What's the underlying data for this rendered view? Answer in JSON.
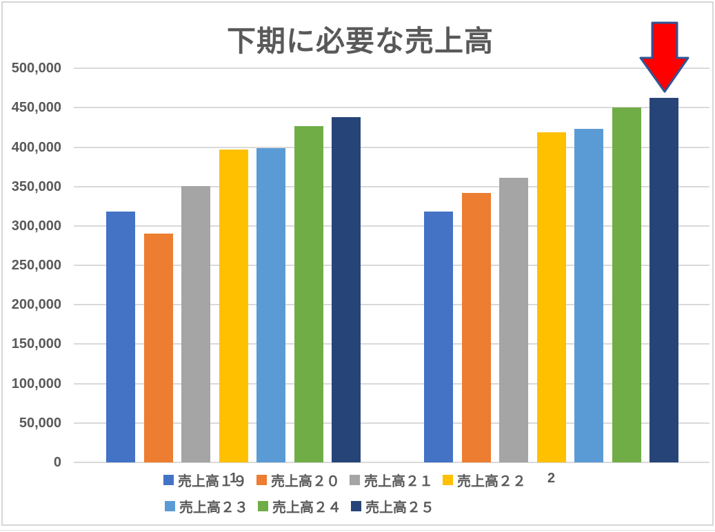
{
  "page": {
    "background": "#ffffff",
    "frame_border_color": "#d6d6d6"
  },
  "chart_data": {
    "type": "bar",
    "title": "下期に必要な売上高",
    "title_color": "#595959",
    "categories": [
      "1",
      "2"
    ],
    "series": [
      {
        "name": "売上高１９",
        "color": "#4472C4",
        "values": [
          318000,
          318000
        ]
      },
      {
        "name": "売上高２０",
        "color": "#ED7D31",
        "values": [
          290000,
          342000
        ]
      },
      {
        "name": "売上高２１",
        "color": "#A5A5A5",
        "values": [
          351000,
          361000
        ]
      },
      {
        "name": "売上高２２",
        "color": "#FFC000",
        "values": [
          397000,
          419000
        ]
      },
      {
        "name": "売上高２３",
        "color": "#5B9BD5",
        "values": [
          399000,
          423000
        ]
      },
      {
        "name": "売上高２４",
        "color": "#70AD47",
        "values": [
          427000,
          450000
        ]
      },
      {
        "name": "売上高２５",
        "color": "#264478",
        "values": [
          438000,
          463000
        ]
      }
    ],
    "ylim": [
      0,
      500000
    ],
    "ytick_step": 50000,
    "ytick_labels": [
      "0",
      "50,000",
      "100,000",
      "150,000",
      "200,000",
      "250,000",
      "300,000",
      "350,000",
      "400,000",
      "450,000",
      "500,000"
    ],
    "grid": true,
    "grid_color": "#d9d9d9",
    "axis_text_color": "#595959",
    "legend_position": "bottom",
    "legend_rows": [
      [
        0,
        1,
        2,
        3
      ],
      [
        4,
        5,
        6
      ]
    ],
    "annotation": {
      "type": "down-arrow",
      "points_to": "売上高２５ category 2 (highest bar)",
      "fill_color": "#FF0000",
      "border_color": "#2F5597"
    }
  }
}
